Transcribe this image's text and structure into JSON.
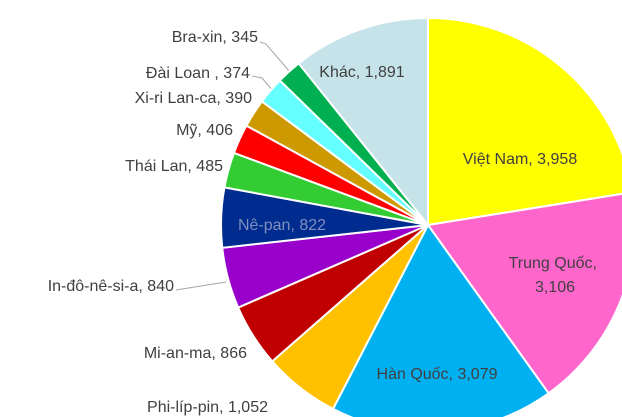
{
  "chart_data": {
    "type": "pie",
    "values": [
      3958,
      3106,
      3079,
      1052,
      866,
      840,
      822,
      485,
      406,
      390,
      374,
      345,
      1891
    ],
    "value_labels": [
      "Việt Nam, 3,958",
      "Trung Quốc, 3,106",
      "Hàn Quốc, 3,079",
      "Phi-líp-pin, 1,052",
      "Mi-an-ma, 866",
      "In-đô-nê-si-a, 840",
      "Nê-pan, 822",
      "Thái Lan, 485",
      "Mỹ, 406",
      "Xi-ri Lan-ca, 390",
      "Đài Loan , 374",
      "Bra-xin, 345",
      "Khác, 1,891"
    ],
    "colors": [
      "#ffff00",
      "#ff66cc",
      "#00b0f0",
      "#ffc000",
      "#c00000",
      "#9900cc",
      "#002b8f",
      "#33cc33",
      "#ff0000",
      "#cc9900",
      "#66ffff",
      "#00b050",
      "#c5e3e8"
    ]
  }
}
